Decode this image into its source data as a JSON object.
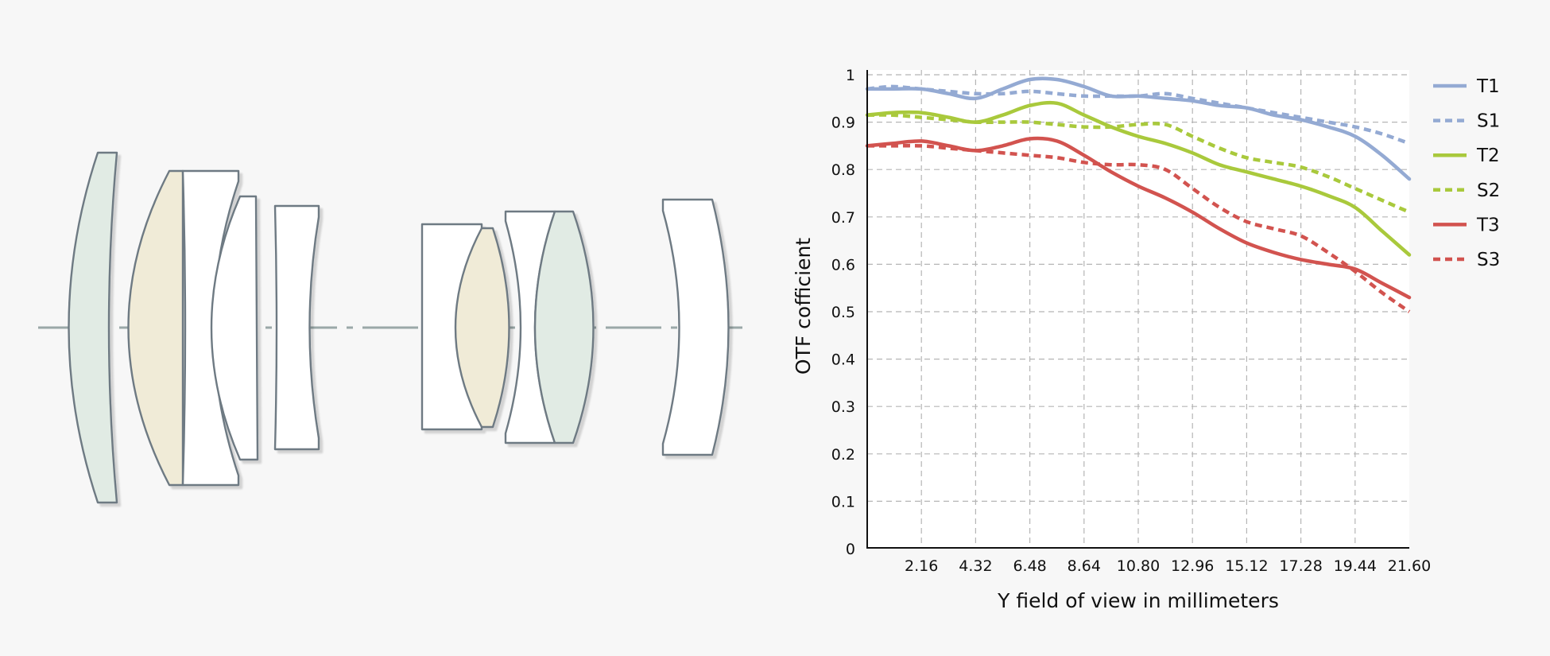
{
  "chart_data": {
    "type": "line",
    "xlabel": "Y field of view in millimeters",
    "ylabel": "OTF cofficient",
    "xlim": [
      0,
      21.6
    ],
    "ylim": [
      0,
      1
    ],
    "x_ticks": [
      "2.16",
      "4.32",
      "6.48",
      "8.64",
      "10.80",
      "12.96",
      "15.12",
      "17.28",
      "19.44",
      "21.60"
    ],
    "y_ticks": [
      "0",
      "0.1",
      "0.2",
      "0.3",
      "0.4",
      "0.5",
      "0.6",
      "0.7",
      "0.8",
      "0.9",
      "1"
    ],
    "grid": true,
    "legend_position": "right",
    "x": [
      0,
      1,
      2.16,
      3.24,
      4.32,
      5.4,
      6.48,
      7.56,
      8.64,
      9.72,
      10.8,
      11.88,
      12.96,
      14.04,
      15.12,
      16.2,
      17.28,
      18.36,
      19.44,
      20.52,
      21.6
    ],
    "series": [
      {
        "name": "T1",
        "style": "solid",
        "color": "#94aad3",
        "values": [
          0.97,
          0.97,
          0.97,
          0.96,
          0.95,
          0.97,
          0.99,
          0.99,
          0.975,
          0.955,
          0.955,
          0.95,
          0.945,
          0.935,
          0.93,
          0.915,
          0.905,
          0.89,
          0.87,
          0.83,
          0.78
        ]
      },
      {
        "name": "S1",
        "style": "dashed",
        "color": "#94aad3",
        "values": [
          0.97,
          0.975,
          0.97,
          0.965,
          0.96,
          0.96,
          0.965,
          0.96,
          0.955,
          0.955,
          0.955,
          0.96,
          0.95,
          0.94,
          0.93,
          0.92,
          0.91,
          0.9,
          0.89,
          0.875,
          0.855
        ]
      },
      {
        "name": "T2",
        "style": "solid",
        "color": "#a9c93c",
        "values": [
          0.915,
          0.92,
          0.92,
          0.91,
          0.9,
          0.915,
          0.935,
          0.94,
          0.915,
          0.89,
          0.87,
          0.855,
          0.835,
          0.81,
          0.795,
          0.78,
          0.765,
          0.745,
          0.72,
          0.67,
          0.62
        ]
      },
      {
        "name": "S2",
        "style": "dashed",
        "color": "#a9c93c",
        "values": [
          0.915,
          0.915,
          0.91,
          0.905,
          0.9,
          0.9,
          0.9,
          0.895,
          0.89,
          0.89,
          0.895,
          0.895,
          0.87,
          0.845,
          0.825,
          0.815,
          0.805,
          0.785,
          0.76,
          0.735,
          0.71
        ]
      },
      {
        "name": "T3",
        "style": "solid",
        "color": "#d2534f",
        "values": [
          0.85,
          0.855,
          0.86,
          0.85,
          0.84,
          0.85,
          0.865,
          0.86,
          0.83,
          0.795,
          0.765,
          0.74,
          0.71,
          0.675,
          0.645,
          0.625,
          0.61,
          0.6,
          0.59,
          0.56,
          0.53
        ]
      },
      {
        "name": "S3",
        "style": "dashed",
        "color": "#d2534f",
        "values": [
          0.85,
          0.85,
          0.85,
          0.845,
          0.84,
          0.835,
          0.83,
          0.825,
          0.815,
          0.81,
          0.81,
          0.8,
          0.76,
          0.72,
          0.69,
          0.675,
          0.66,
          0.625,
          0.585,
          0.54,
          0.5
        ]
      }
    ]
  },
  "lens_elements": [
    {
      "name": "lens-element-1",
      "fill": "#e1ebe4"
    },
    {
      "name": "lens-element-2",
      "fill": "#f0ebd7"
    },
    {
      "name": "lens-element-3",
      "fill": "#ffffff"
    },
    {
      "name": "lens-element-4",
      "fill": "#ffffff"
    },
    {
      "name": "lens-element-5",
      "fill": "#ffffff"
    },
    {
      "name": "lens-element-6",
      "fill": "#ffffff"
    },
    {
      "name": "lens-element-7",
      "fill": "#f0ebd7"
    },
    {
      "name": "lens-element-8",
      "fill": "#ffffff"
    },
    {
      "name": "lens-element-9",
      "fill": "#e1ebe4"
    },
    {
      "name": "lens-element-10",
      "fill": "#ffffff"
    }
  ],
  "colors": {
    "background": "#f7f7f7",
    "plot_background": "#ffffff",
    "lens_stroke": "#6e7a83",
    "optical_axis": "#9aa8a8",
    "grid": "#b5b5b5"
  }
}
